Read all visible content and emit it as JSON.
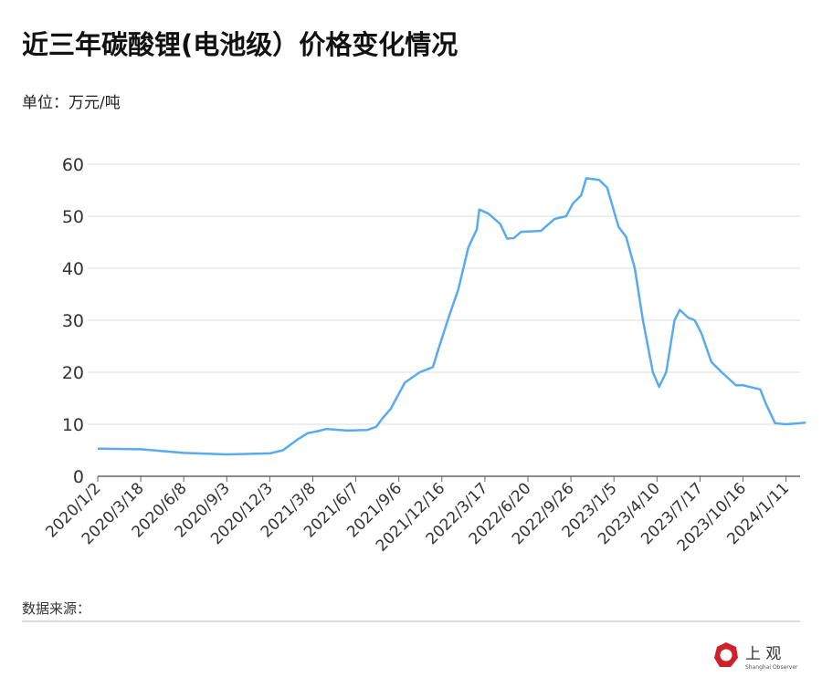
{
  "chart_data": {
    "type": "line",
    "title": "近三年碳酸锂(电池级）价格变化情况",
    "unit_label": "单位：万元/吨",
    "source_label": "数据来源：",
    "ylim": [
      0,
      60
    ],
    "yticks": [
      0,
      10,
      20,
      30,
      40,
      50,
      60
    ],
    "grid": true,
    "line_color": "#5aaaf0",
    "xticks": [
      "2020/1/2",
      "2020/3/18",
      "2020/6/8",
      "2020/9/3",
      "2020/12/3",
      "2021/3/8",
      "2021/6/7",
      "2021/9/6",
      "2021/12/16",
      "2022/3/17",
      "2022/6/20",
      "2022/9/26",
      "2023/1/5",
      "2023/4/10",
      "2023/7/17",
      "2023/10/16",
      "2024/1/11"
    ],
    "series": [
      {
        "points": [
          [
            "2020/1/2",
            5.3
          ],
          [
            "2020/3/18",
            5.2
          ],
          [
            "2020/6/8",
            4.5
          ],
          [
            "2020/9/3",
            4.2
          ],
          [
            "2020/12/3",
            4.4
          ],
          [
            "2021/1/1",
            5.0
          ],
          [
            "2021/2/1",
            7.0
          ],
          [
            "2021/2/25",
            8.3
          ],
          [
            "2021/3/20",
            8.7
          ],
          [
            "2021/4/5",
            9.1
          ],
          [
            "2021/5/20",
            8.8
          ],
          [
            "2021/7/1",
            8.9
          ],
          [
            "2021/7/20",
            9.5
          ],
          [
            "2021/8/1",
            11
          ],
          [
            "2021/8/20",
            13
          ],
          [
            "2021/9/20",
            18
          ],
          [
            "2021/10/25",
            20
          ],
          [
            "2021/11/25",
            21
          ],
          [
            "2021/12/10",
            25
          ],
          [
            "2022/1/1",
            31
          ],
          [
            "2022/1/20",
            36
          ],
          [
            "2022/2/10",
            44
          ],
          [
            "2022/2/28",
            47.5
          ],
          [
            "2022/3/5",
            51.3
          ],
          [
            "2022/3/25",
            50.5
          ],
          [
            "2022/4/20",
            48.5
          ],
          [
            "2022/5/5",
            45.7
          ],
          [
            "2022/5/20",
            45.8
          ],
          [
            "2022/6/5",
            47
          ],
          [
            "2022/7/20",
            47.2
          ],
          [
            "2022/8/20",
            49.5
          ],
          [
            "2022/9/15",
            50
          ],
          [
            "2022/10/1",
            52.5
          ],
          [
            "2022/10/20",
            54
          ],
          [
            "2022/11/1",
            57.3
          ],
          [
            "2022/12/1",
            57
          ],
          [
            "2022/12/20",
            55.5
          ],
          [
            "2023/1/5",
            51
          ],
          [
            "2023/1/15",
            48
          ],
          [
            "2023/2/1",
            46
          ],
          [
            "2023/2/20",
            40
          ],
          [
            "2023/3/10",
            30
          ],
          [
            "2023/4/1",
            20
          ],
          [
            "2023/4/15",
            17.2
          ],
          [
            "2023/5/1",
            20
          ],
          [
            "2023/5/20",
            30
          ],
          [
            "2023/6/1",
            32
          ],
          [
            "2023/6/20",
            30.5
          ],
          [
            "2023/7/5",
            30
          ],
          [
            "2023/7/20",
            27.5
          ],
          [
            "2023/8/10",
            22
          ],
          [
            "2023/9/1",
            20
          ],
          [
            "2023/10/1",
            17.5
          ],
          [
            "2023/10/16",
            17.5
          ],
          [
            "2023/11/20",
            16.7
          ],
          [
            "2023/12/1",
            14
          ],
          [
            "2023/12/20",
            10.2
          ],
          [
            "2024/1/11",
            10
          ],
          [
            "2024/2/20",
            10.3
          ]
        ]
      }
    ]
  },
  "logo": {
    "name": "上观",
    "subtitle": "Shanghai Observer",
    "color": "#d0202a"
  }
}
